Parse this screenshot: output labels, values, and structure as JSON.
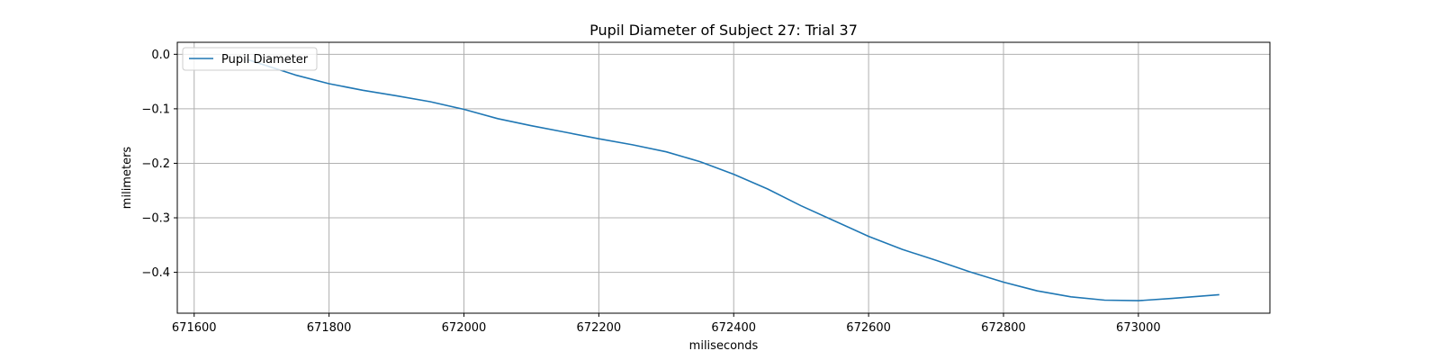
{
  "chart_data": {
    "type": "line",
    "title": "Pupil Diameter of Subject 27: Trial 37",
    "xlabel": "miliseconds",
    "ylabel": "milimeters",
    "xlim": [
      671575,
      673195
    ],
    "ylim": [
      -0.475,
      0.022
    ],
    "xticks": [
      671600,
      671800,
      672000,
      672200,
      672400,
      672600,
      672800,
      673000
    ],
    "yticks": [
      0.0,
      -0.1,
      -0.2,
      -0.3,
      -0.4
    ],
    "xtick_labels": [
      "671600",
      "671800",
      "672000",
      "672200",
      "672400",
      "672600",
      "672800",
      "673000"
    ],
    "ytick_labels": [
      "0.0",
      "−0.1",
      "−0.2",
      "−0.3",
      "−0.4"
    ],
    "grid": true,
    "legend_position": "upper left",
    "series": [
      {
        "name": "Pupil Diameter",
        "color": "#1f77b4",
        "x": [
          671680,
          671700,
          671750,
          671800,
          671850,
          671900,
          671950,
          672000,
          672050,
          672100,
          672150,
          672200,
          672250,
          672300,
          672350,
          672400,
          672450,
          672500,
          672550,
          672600,
          672650,
          672700,
          672750,
          672800,
          672850,
          672900,
          672950,
          673000,
          673050,
          673120
        ],
        "y": [
          -0.01,
          -0.018,
          -0.038,
          -0.054,
          -0.066,
          -0.076,
          -0.087,
          -0.101,
          -0.118,
          -0.131,
          -0.143,
          -0.155,
          -0.166,
          -0.179,
          -0.197,
          -0.22,
          -0.247,
          -0.278,
          -0.306,
          -0.334,
          -0.358,
          -0.378,
          -0.399,
          -0.418,
          -0.434,
          -0.445,
          -0.451,
          -0.452,
          -0.448,
          -0.441
        ]
      }
    ]
  }
}
